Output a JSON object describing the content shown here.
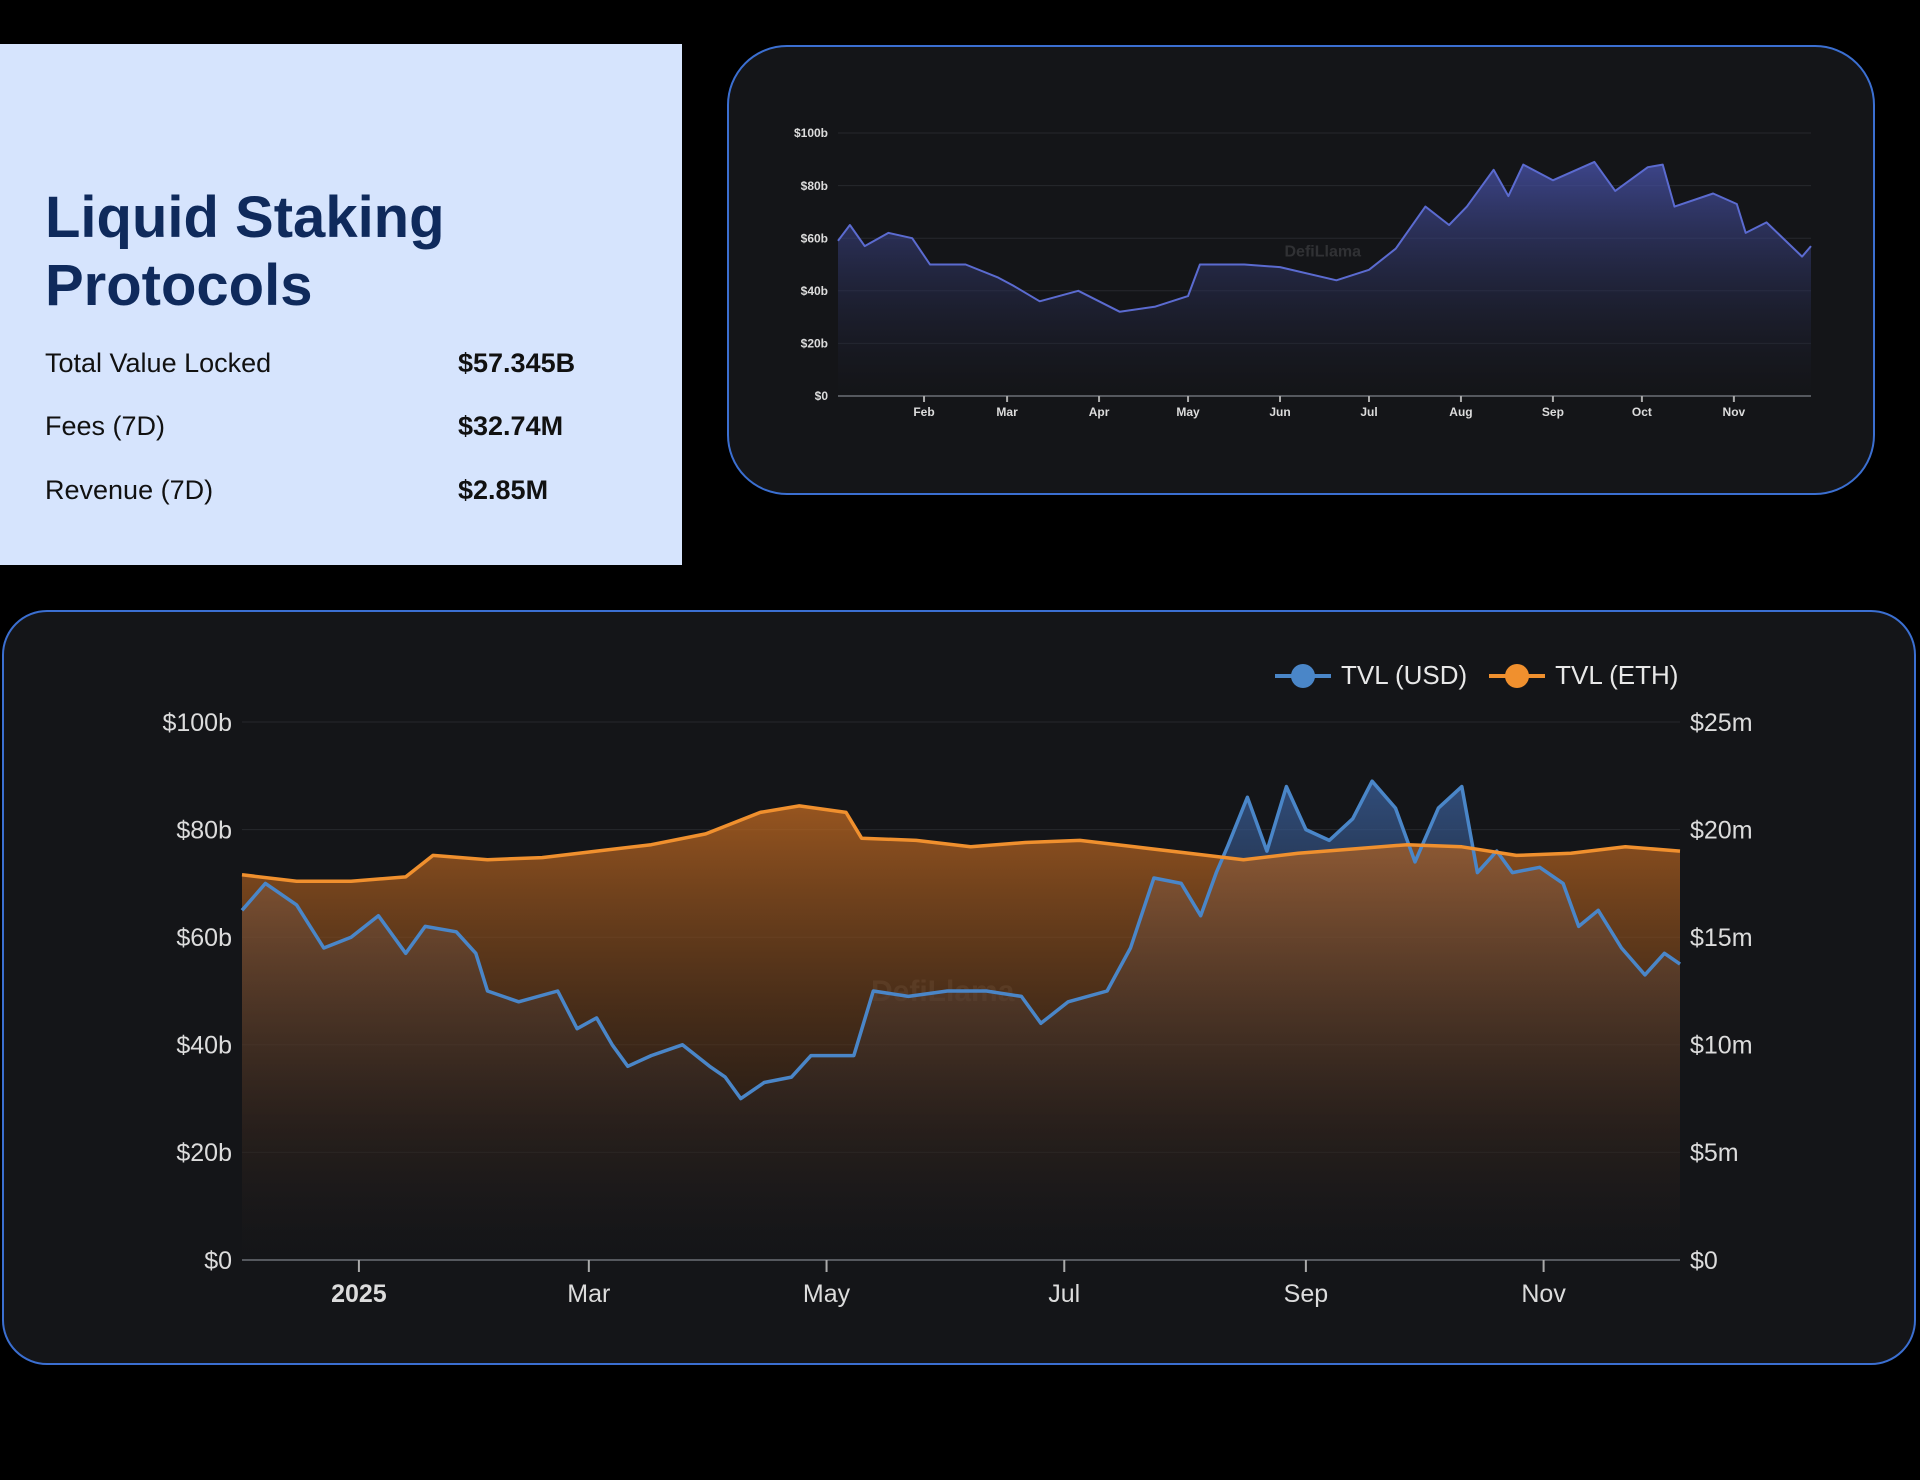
{
  "info": {
    "title": "Liquid Staking Protocols",
    "rows": [
      {
        "label": "Total Value Locked",
        "value": "$57.345B"
      },
      {
        "label": "Fees (7D)",
        "value": "$32.74M"
      },
      {
        "label": "Revenue (7D)",
        "value": "$2.85M"
      }
    ]
  },
  "colors": {
    "usd": "#4a86c8",
    "eth": "#f0902e",
    "top_line": "#5b6bd0",
    "border": "#3b6fd1",
    "panel": "#d6e4fd"
  },
  "chart_data": [
    {
      "type": "area",
      "watermark": "DefiLlama",
      "ylim": [
        0,
        100
      ],
      "yticks": [
        "$0",
        "$20b",
        "$40b",
        "$60b",
        "$80b",
        "$100b"
      ],
      "xticks": [
        {
          "date": "2025-02-01",
          "label": "Feb"
        },
        {
          "date": "2025-03-01",
          "label": "Mar"
        },
        {
          "date": "2025-04-01",
          "label": "Apr"
        },
        {
          "date": "2025-05-01",
          "label": "May"
        },
        {
          "date": "2025-06-01",
          "label": "Jun"
        },
        {
          "date": "2025-07-01",
          "label": "Jul"
        },
        {
          "date": "2025-08-01",
          "label": "Aug"
        },
        {
          "date": "2025-09-01",
          "label": "Sep"
        },
        {
          "date": "2025-10-01",
          "label": "Oct"
        },
        {
          "date": "2025-11-01",
          "label": "Nov"
        }
      ],
      "series": [
        {
          "x": [
            "2025-01-03",
            "2025-01-07",
            "2025-01-12",
            "2025-01-20",
            "2025-01-28",
            "2025-02-03",
            "2025-02-15",
            "2025-02-26",
            "2025-03-03",
            "2025-03-12",
            "2025-03-25",
            "2025-04-08",
            "2025-04-20",
            "2025-05-01",
            "2025-05-05",
            "2025-05-20",
            "2025-06-01",
            "2025-06-20",
            "2025-07-01",
            "2025-07-10",
            "2025-07-20",
            "2025-07-28",
            "2025-08-03",
            "2025-08-12",
            "2025-08-17",
            "2025-08-22",
            "2025-09-01",
            "2025-09-15",
            "2025-09-22",
            "2025-10-03",
            "2025-10-08",
            "2025-10-12",
            "2025-10-25",
            "2025-11-02",
            "2025-11-05",
            "2025-11-12",
            "2025-11-24",
            "2025-11-27"
          ],
          "y": [
            59,
            65,
            57,
            62,
            60,
            50,
            50,
            45,
            42,
            36,
            40,
            32,
            34,
            38,
            50,
            50,
            49,
            44,
            48,
            56,
            72,
            65,
            72,
            86,
            76,
            88,
            82,
            89,
            78,
            87,
            88,
            72,
            77,
            73,
            62,
            66,
            53,
            57
          ]
        }
      ]
    },
    {
      "type": "line",
      "watermark": "DefiLlama",
      "legend": "top-right",
      "ylim": [
        0,
        100
      ],
      "ylim_right": [
        0,
        25
      ],
      "yticks": [
        "$0",
        "$20b",
        "$40b",
        "$60b",
        "$80b",
        "$100b"
      ],
      "yticks_right": [
        "$0",
        "$5m",
        "$10m",
        "$15m",
        "$20m",
        "$25m"
      ],
      "xticks": [
        {
          "date": "2025-01-01",
          "label": "2025"
        },
        {
          "date": "2025-03-01",
          "label": "Mar"
        },
        {
          "date": "2025-05-01",
          "label": "May"
        },
        {
          "date": "2025-07-01",
          "label": "Jul"
        },
        {
          "date": "2025-09-01",
          "label": "Sep"
        },
        {
          "date": "2025-11-01",
          "label": "Nov"
        }
      ],
      "series": [
        {
          "name": "TVL (USD)",
          "axis": "left",
          "x": [
            "2024-12-02",
            "2024-12-08",
            "2024-12-16",
            "2024-12-23",
            "2024-12-30",
            "2025-01-06",
            "2025-01-13",
            "2025-01-18",
            "2025-01-26",
            "2025-01-31",
            "2025-02-03",
            "2025-02-11",
            "2025-02-21",
            "2025-02-26",
            "2025-03-03",
            "2025-03-07",
            "2025-03-11",
            "2025-03-17",
            "2025-03-25",
            "2025-04-01",
            "2025-04-05",
            "2025-04-09",
            "2025-04-15",
            "2025-04-22",
            "2025-04-27",
            "2025-05-08",
            "2025-05-13",
            "2025-05-22",
            "2025-06-01",
            "2025-06-11",
            "2025-06-20",
            "2025-06-25",
            "2025-07-02",
            "2025-07-12",
            "2025-07-18",
            "2025-07-24",
            "2025-07-31",
            "2025-08-05",
            "2025-08-09",
            "2025-08-12",
            "2025-08-17",
            "2025-08-22",
            "2025-08-27",
            "2025-09-01",
            "2025-09-07",
            "2025-09-13",
            "2025-09-18",
            "2025-09-24",
            "2025-09-29",
            "2025-10-05",
            "2025-10-11",
            "2025-10-15",
            "2025-10-20",
            "2025-10-24",
            "2025-10-31",
            "2025-11-06",
            "2025-11-10",
            "2025-11-15",
            "2025-11-21",
            "2025-11-27",
            "2025-12-02",
            "2025-12-06"
          ],
          "y": [
            65,
            70,
            66,
            58,
            60,
            64,
            57,
            62,
            61,
            57,
            50,
            48,
            50,
            43,
            45,
            40,
            36,
            38,
            40,
            36,
            34,
            30,
            33,
            34,
            38,
            38,
            50,
            49,
            50,
            50,
            49,
            44,
            48,
            50,
            58,
            71,
            70,
            64,
            72,
            77,
            86,
            76,
            88,
            80,
            78,
            82,
            89,
            84,
            74,
            84,
            88,
            72,
            76,
            72,
            73,
            70,
            62,
            65,
            58,
            53,
            57,
            55
          ]
        },
        {
          "name": "TVL (ETH)",
          "axis": "right",
          "x": [
            "2024-12-02",
            "2024-12-16",
            "2024-12-30",
            "2025-01-13",
            "2025-01-20",
            "2025-02-03",
            "2025-02-17",
            "2025-03-03",
            "2025-03-17",
            "2025-03-31",
            "2025-04-14",
            "2025-04-24",
            "2025-05-06",
            "2025-05-10",
            "2025-05-24",
            "2025-06-07",
            "2025-06-21",
            "2025-07-05",
            "2025-07-19",
            "2025-08-02",
            "2025-08-16",
            "2025-08-30",
            "2025-09-13",
            "2025-09-27",
            "2025-10-11",
            "2025-10-25",
            "2025-11-08",
            "2025-11-22",
            "2025-12-06"
          ],
          "y": [
            17.9,
            17.6,
            17.6,
            17.8,
            18.8,
            18.6,
            18.7,
            19.0,
            19.3,
            19.8,
            20.8,
            21.1,
            20.8,
            19.6,
            19.5,
            19.2,
            19.4,
            19.5,
            19.2,
            18.9,
            18.6,
            18.9,
            19.1,
            19.3,
            19.2,
            18.8,
            18.9,
            19.2,
            19.0
          ]
        }
      ]
    }
  ]
}
